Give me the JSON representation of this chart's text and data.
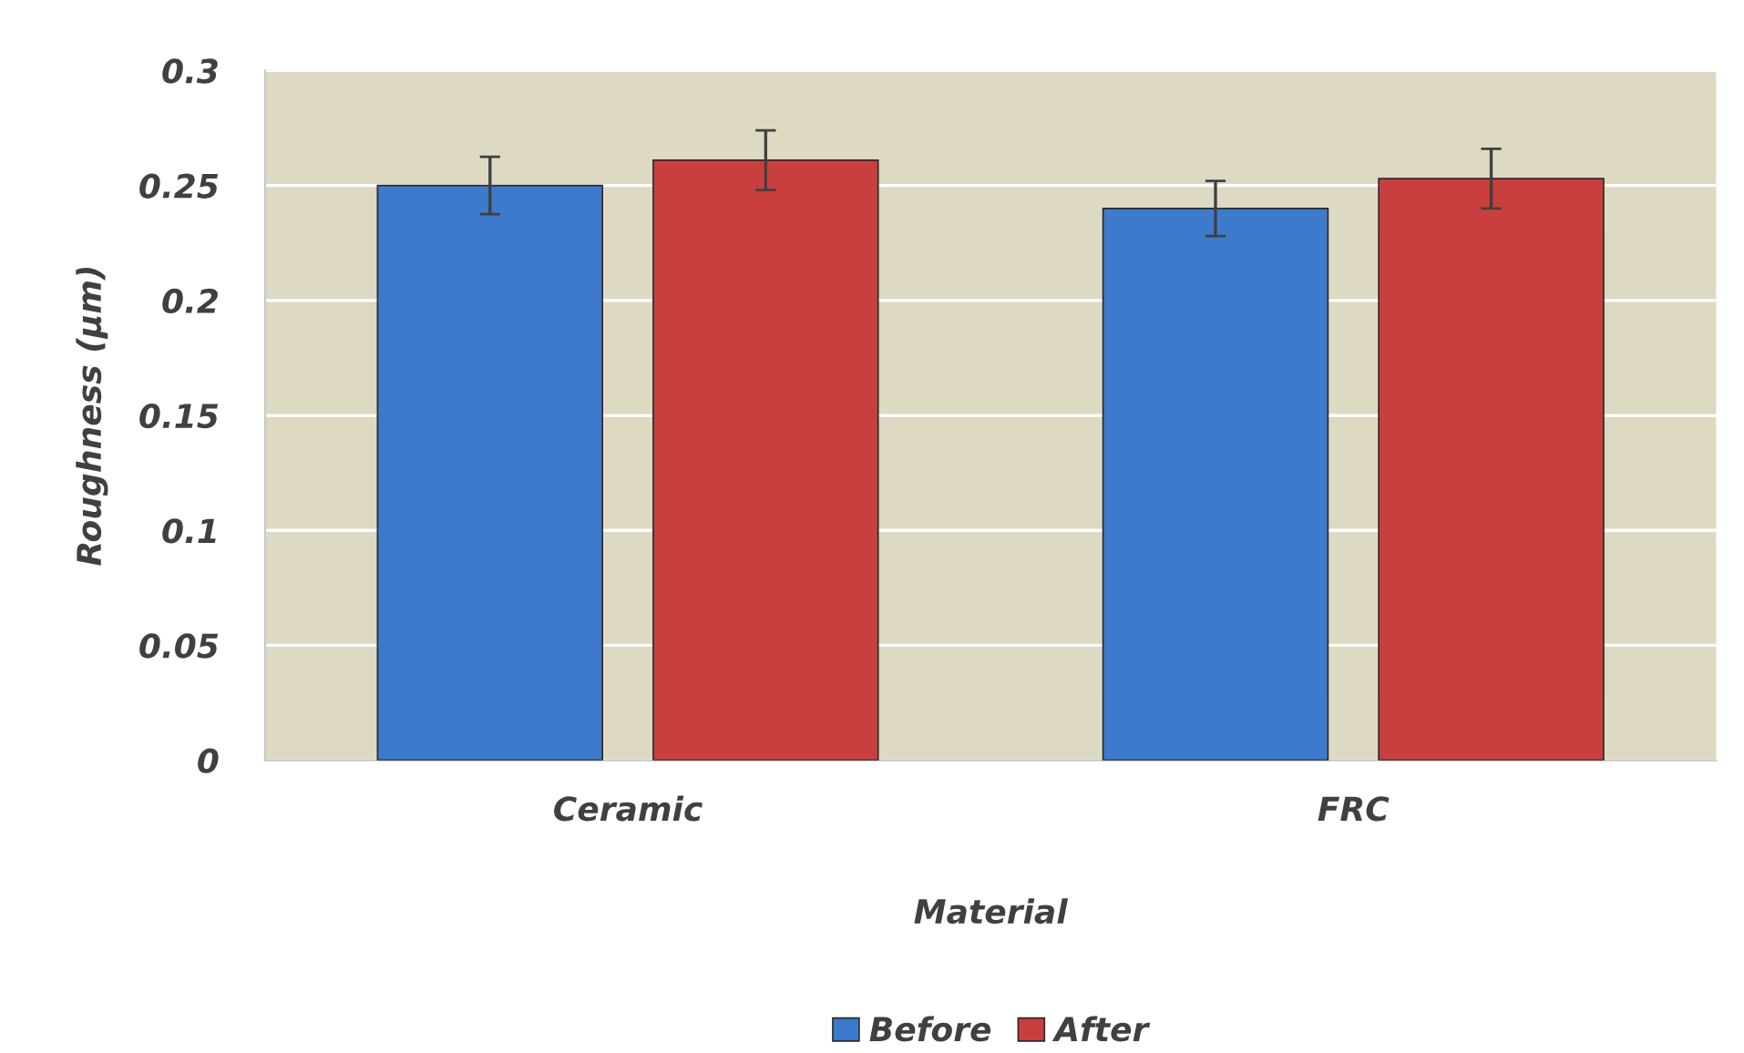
{
  "chart_data": {
    "type": "bar",
    "xlabel": "Material",
    "ylabel": "Roughness (µm)",
    "categories": [
      "Ceramic",
      "FRC"
    ],
    "series": [
      {
        "name": "Before",
        "color": "#3d7acb",
        "values": [
          0.25,
          0.24
        ],
        "errors": [
          0.0125,
          0.012
        ]
      },
      {
        "name": "After",
        "color": "#c93f3f",
        "values": [
          0.261,
          0.253
        ],
        "errors": [
          0.013,
          0.013
        ]
      }
    ],
    "ylim": [
      0,
      0.3
    ],
    "yticks": [
      {
        "value": 0,
        "label": "0"
      },
      0.05,
      0.1,
      0.15,
      0.2,
      0.25,
      0.3
    ],
    "grid": "y",
    "legend": "bottom"
  }
}
